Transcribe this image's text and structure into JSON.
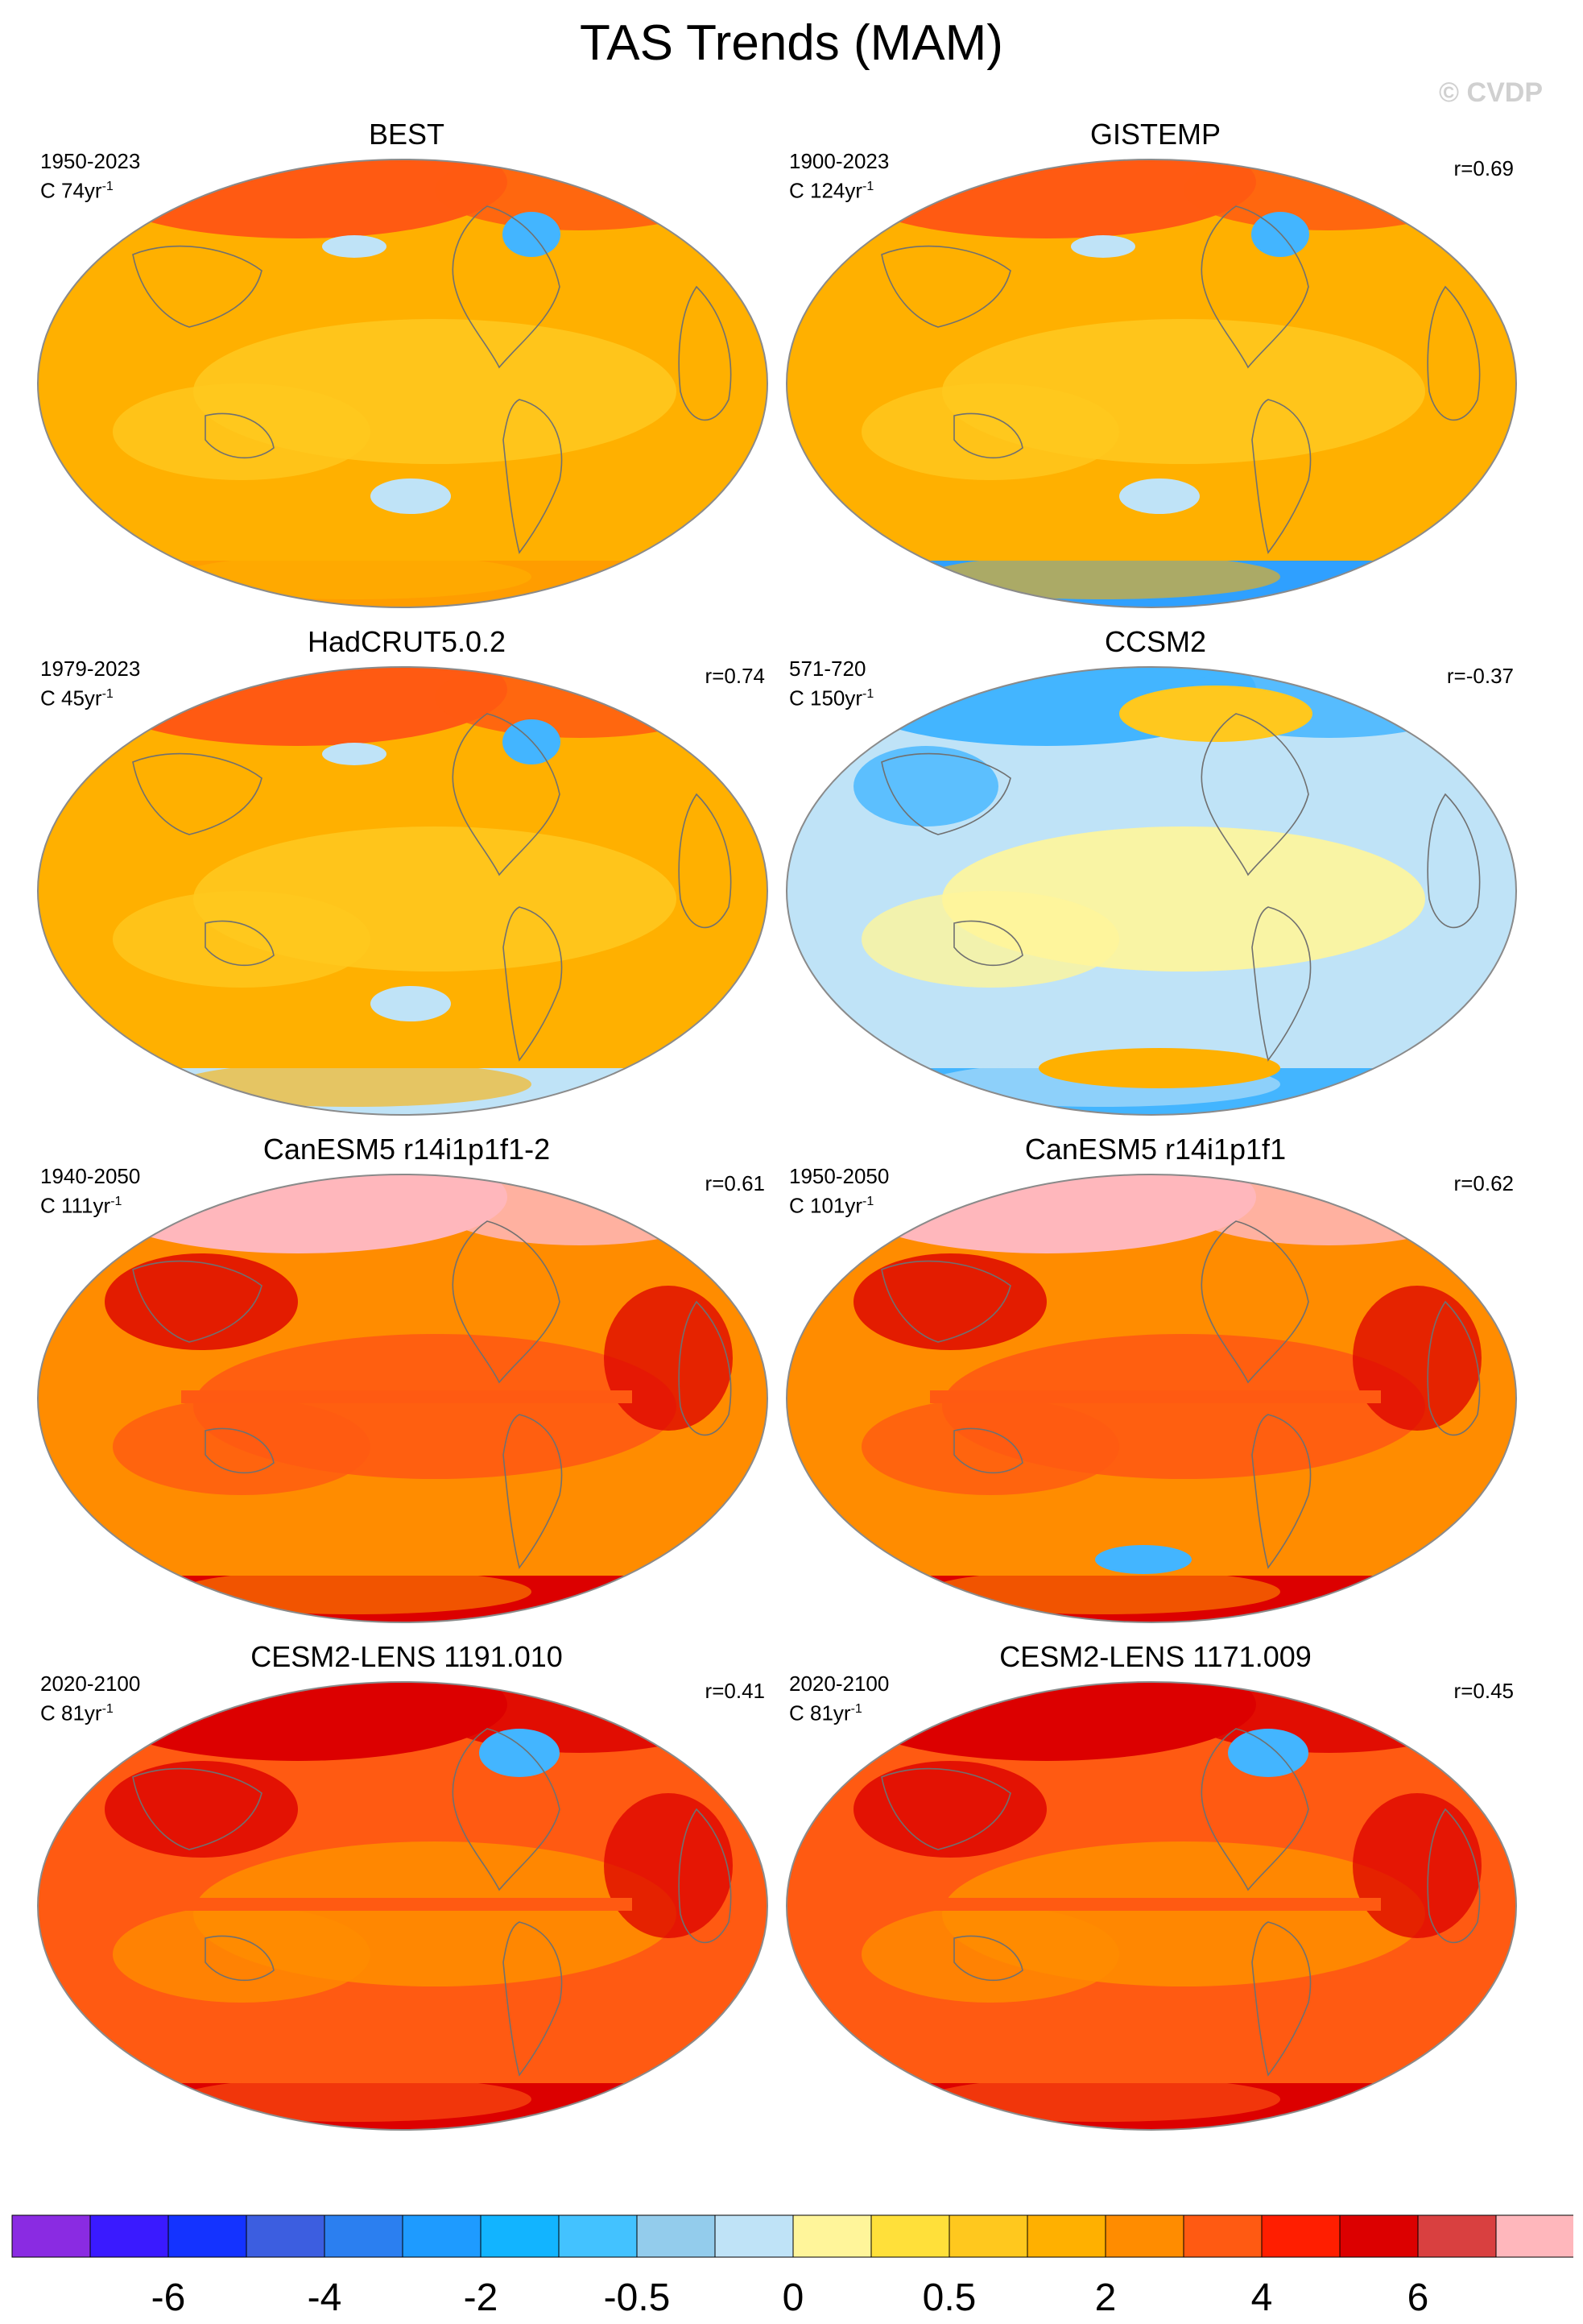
{
  "figure": {
    "title": "TAS Trends (MAM)",
    "credit": "© CVDP"
  },
  "panels": [
    {
      "name": "BEST",
      "period": "1950-2023",
      "units": "C 74yr",
      "corr": "",
      "palette": "warm",
      "colors": {
        "base": "#ffb000",
        "ocean": "#ffc81e",
        "arctic": "#ff5a12",
        "antarctic": "#ff9d00"
      }
    },
    {
      "name": "GISTEMP",
      "period": "1900-2023",
      "units": "C 124yr",
      "corr": "r=0.69",
      "palette": "warm",
      "colors": {
        "base": "#ffb000",
        "ocean": "#ffc81e",
        "arctic": "#ff5a12",
        "antarctic": "#2fa0ff"
      }
    },
    {
      "name": "HadCRUT5.0.2",
      "period": "1979-2023",
      "units": "C 45yr",
      "corr": "r=0.74",
      "palette": "warm",
      "colors": {
        "base": "#ffb000",
        "ocean": "#ffc81e",
        "arctic": "#ff5a12",
        "antarctic": "#bfe3f7"
      }
    },
    {
      "name": "CCSM2",
      "period": "571-720",
      "units": "C 150yr",
      "corr": "r=-0.37",
      "palette": "cool",
      "colors": {
        "base": "#bfe3f7",
        "ocean": "#fff59a",
        "arctic": "#43b5ff",
        "antarctic": "#43b5ff"
      }
    },
    {
      "name": "CanESM5 r14i1p1f1-2",
      "period": "1940-2050",
      "units": "C 111yr",
      "corr": "r=0.61",
      "palette": "hot",
      "colors": {
        "base": "#ff8c00",
        "ocean": "#ff5a12",
        "arctic": "#ffb7bc",
        "antarctic": "#dc0000"
      }
    },
    {
      "name": "CanESM5 r14i1p1f1",
      "period": "1950-2050",
      "units": "C 101yr",
      "corr": "r=0.62",
      "palette": "hot",
      "colors": {
        "base": "#ff8c00",
        "ocean": "#ff5a12",
        "arctic": "#ffb7bc",
        "antarctic": "#dc0000"
      }
    },
    {
      "name": "CESM2-LENS 1191.010",
      "period": "2020-2100",
      "units": "C 81yr",
      "corr": "r=0.41",
      "palette": "hot",
      "colors": {
        "base": "#ff5a12",
        "ocean": "#ff8c00",
        "arctic": "#dc0000",
        "antarctic": "#dc0000"
      }
    },
    {
      "name": "CESM2-LENS 1171.009",
      "period": "2020-2100",
      "units": "C 81yr",
      "corr": "r=0.45",
      "palette": "hot",
      "colors": {
        "base": "#ff5a12",
        "ocean": "#ff8c00",
        "arctic": "#dc0000",
        "antarctic": "#dc0000"
      }
    }
  ],
  "colorbar": {
    "colors": [
      "#8a2be2",
      "#3a1aff",
      "#1433ff",
      "#3c5ee0",
      "#2b7ff0",
      "#1e9bff",
      "#12b4ff",
      "#43c2ff",
      "#93ccec",
      "#bfe3f7",
      "#fff59a",
      "#ffe03a",
      "#ffc81e",
      "#ffb000",
      "#ff8c00",
      "#ff5a12",
      "#ff1e00",
      "#dc0000",
      "#d94040",
      "#ffb7bc"
    ],
    "labels": [
      "-6",
      "-4",
      "-2",
      "-0.5",
      "0",
      "0.5",
      "2",
      "4",
      "6"
    ],
    "label_boundaries": [
      2,
      4,
      6,
      8,
      10,
      12,
      14,
      16,
      18
    ]
  }
}
